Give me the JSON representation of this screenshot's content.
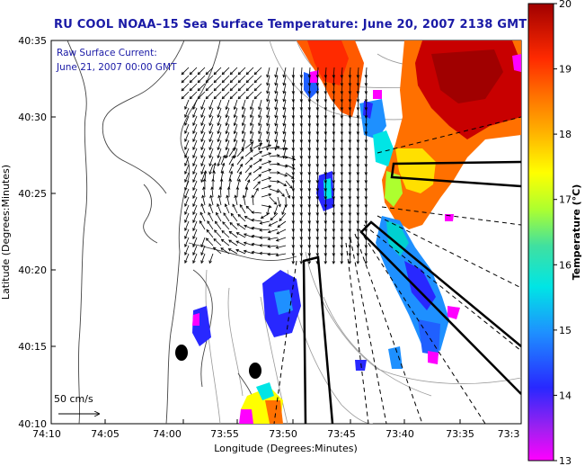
{
  "title": "RU COOL   NOAA–15  Sea Surface Temperature:  June 20, 2007 2138 GMT",
  "legend": {
    "line1": "Raw Surface Current:",
    "line2": "June 21, 2007 00:00 GMT",
    "scale_label": "50 cm/s"
  },
  "axes": {
    "xlabel": "Longitude (Degrees:Minutes)",
    "ylabel": "Latitude (Degrees:Minutes)",
    "x_ticks": [
      "74:10",
      "74:05",
      "74:00",
      "73:55",
      "73:50",
      "73:45",
      "73:40",
      "73:35",
      "73:3"
    ],
    "y_ticks": [
      "40:35",
      "40:30",
      "40:25",
      "40:20",
      "40:15",
      "40:10"
    ]
  },
  "colorbar": {
    "label": "Temperature (°C)",
    "ticks": [
      "20",
      "19",
      "18",
      "17",
      "16",
      "15",
      "14",
      "13"
    ],
    "range": [
      13,
      20
    ]
  },
  "colors": {
    "title_blue": "#1a1aa6",
    "land": "#ffffff",
    "ocean": "#ffffff",
    "contour": "#888888"
  }
}
